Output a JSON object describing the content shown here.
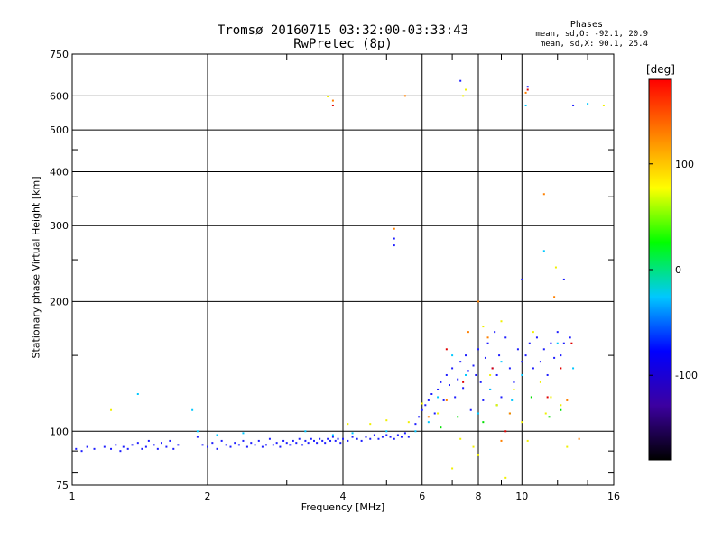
{
  "chart_data": {
    "type": "scatter",
    "title": "Tromsø 20160715 03:32:00-03:33:43",
    "subtitle": "RwPretec (8p)",
    "xlabel": "Frequency [MHz]",
    "ylabel": "Stationary phase Virtual Height [km]",
    "xscale": "log",
    "yscale": "log",
    "xlim": [
      1,
      16
    ],
    "ylim": [
      75,
      750
    ],
    "xticks": [
      1,
      2,
      4,
      6,
      8,
      10,
      16
    ],
    "xtick_labels": [
      "1",
      "2",
      "4",
      "6",
      "8",
      "10",
      "16"
    ],
    "yticks": [
      75,
      100,
      200,
      300,
      400,
      500,
      600,
      750
    ],
    "ytick_labels": [
      "75",
      "100",
      "200",
      "300",
      "400",
      "500",
      "600",
      "750"
    ],
    "grid": true,
    "phases": {
      "header": "Phases",
      "o_line": "mean, sd,O: -92.1, 20.9",
      "x_line": "mean, sd,X:  90.1, 25.4"
    },
    "colorbar": {
      "label": "[deg]",
      "range": [
        -180,
        180
      ],
      "ticks": [
        100,
        0,
        -100
      ],
      "tick_labels": [
        "100",
        "0",
        "-100"
      ],
      "colors": [
        "#000000",
        "#3c00a0",
        "#0000ff",
        "#00c8ff",
        "#00ff00",
        "#ffff00",
        "#ff8000",
        "#ff0000"
      ]
    },
    "series": [
      {
        "values": [
          [
            1.02,
            91
          ],
          [
            1.05,
            90
          ],
          [
            1.08,
            92
          ],
          [
            1.12,
            91
          ],
          [
            1.18,
            92
          ],
          [
            1.22,
            91
          ],
          [
            1.25,
            93
          ],
          [
            1.28,
            90
          ],
          [
            1.3,
            92
          ],
          [
            1.33,
            91
          ],
          [
            1.36,
            93
          ],
          [
            1.4,
            94
          ],
          [
            1.43,
            91
          ],
          [
            1.46,
            92
          ],
          [
            1.48,
            95
          ],
          [
            1.52,
            93
          ],
          [
            1.55,
            91
          ],
          [
            1.58,
            94
          ],
          [
            1.62,
            92
          ],
          [
            1.65,
            95
          ],
          [
            1.68,
            91
          ],
          [
            1.72,
            93
          ],
          [
            1.9,
            97
          ],
          [
            1.95,
            93
          ],
          [
            2.0,
            92
          ],
          [
            2.05,
            94
          ],
          [
            2.1,
            91
          ],
          [
            2.15,
            95
          ],
          [
            2.2,
            93
          ],
          [
            2.25,
            92
          ],
          [
            2.3,
            94
          ],
          [
            2.35,
            93
          ],
          [
            2.4,
            95
          ],
          [
            2.45,
            92
          ],
          [
            2.5,
            94
          ],
          [
            2.55,
            93
          ],
          [
            2.6,
            95
          ],
          [
            2.65,
            92
          ],
          [
            2.7,
            93
          ],
          [
            2.75,
            96
          ],
          [
            2.8,
            93
          ],
          [
            2.85,
            94
          ],
          [
            2.9,
            92
          ],
          [
            2.95,
            95
          ],
          [
            3.0,
            94
          ],
          [
            3.05,
            93
          ],
          [
            3.1,
            95
          ],
          [
            3.15,
            94
          ],
          [
            3.2,
            96
          ],
          [
            3.25,
            93
          ],
          [
            3.3,
            95
          ],
          [
            3.35,
            94
          ],
          [
            3.4,
            96
          ],
          [
            3.45,
            95
          ],
          [
            3.5,
            94
          ],
          [
            3.55,
            96
          ],
          [
            3.6,
            95
          ],
          [
            3.65,
            94
          ],
          [
            3.7,
            96
          ],
          [
            3.75,
            95
          ],
          [
            3.8,
            97
          ],
          [
            3.85,
            95
          ],
          [
            3.9,
            96
          ],
          [
            3.95,
            94
          ],
          [
            4.0,
            96
          ],
          [
            4.1,
            95
          ],
          [
            4.2,
            97
          ],
          [
            4.3,
            96
          ],
          [
            4.4,
            95
          ],
          [
            4.5,
            97
          ],
          [
            4.6,
            96
          ],
          [
            4.7,
            98
          ],
          [
            4.8,
            96
          ],
          [
            4.9,
            97
          ],
          [
            5.0,
            98
          ],
          [
            5.1,
            97
          ],
          [
            5.2,
            96
          ],
          [
            5.3,
            98
          ],
          [
            5.4,
            97
          ],
          [
            5.5,
            99
          ],
          [
            5.6,
            97
          ],
          [
            5.2,
            270
          ],
          [
            5.2,
            280
          ],
          [
            5.8,
            104
          ],
          [
            5.9,
            108
          ],
          [
            6.0,
            112
          ],
          [
            6.1,
            115
          ],
          [
            6.2,
            118
          ],
          [
            6.3,
            122
          ],
          [
            6.4,
            110
          ],
          [
            6.5,
            125
          ],
          [
            6.6,
            130
          ],
          [
            6.7,
            118
          ],
          [
            6.8,
            135
          ],
          [
            6.9,
            128
          ],
          [
            7.0,
            140
          ],
          [
            7.1,
            120
          ],
          [
            7.2,
            132
          ],
          [
            7.3,
            145
          ],
          [
            7.4,
            126
          ],
          [
            7.5,
            150
          ],
          [
            7.6,
            138
          ],
          [
            7.7,
            112
          ],
          [
            7.8,
            142
          ],
          [
            7.9,
            135
          ],
          [
            8.0,
            155
          ],
          [
            8.1,
            130
          ],
          [
            8.2,
            118
          ],
          [
            8.3,
            148
          ],
          [
            8.4,
            160
          ],
          [
            8.5,
            125
          ],
          [
            8.6,
            140
          ],
          [
            8.7,
            170
          ],
          [
            8.8,
            135
          ],
          [
            8.9,
            150
          ],
          [
            9.0,
            120
          ],
          [
            9.2,
            165
          ],
          [
            9.4,
            140
          ],
          [
            9.6,
            130
          ],
          [
            9.8,
            155
          ],
          [
            10.0,
            145
          ],
          [
            10.2,
            150
          ],
          [
            10.4,
            160
          ],
          [
            10.6,
            140
          ],
          [
            10.8,
            165
          ],
          [
            11.0,
            145
          ],
          [
            11.2,
            155
          ],
          [
            11.4,
            135
          ],
          [
            11.6,
            160
          ],
          [
            11.8,
            148
          ],
          [
            12.0,
            170
          ],
          [
            12.2,
            150
          ],
          [
            12.4,
            160
          ],
          [
            12.8,
            165
          ],
          [
            10.3,
            630
          ],
          [
            7.3,
            650
          ],
          [
            13.0,
            570
          ],
          [
            12.4,
            225
          ],
          [
            10.0,
            225
          ]
        ],
        "color": "#1e1eff"
      },
      {
        "values": [
          [
            1.4,
            122
          ],
          [
            1.85,
            112
          ],
          [
            1.9,
            100
          ],
          [
            2.1,
            98
          ],
          [
            2.4,
            99
          ],
          [
            3.3,
            100
          ],
          [
            3.8,
            98
          ],
          [
            4.2,
            99
          ],
          [
            5.0,
            100
          ],
          [
            5.8,
            100
          ],
          [
            6.2,
            105
          ],
          [
            6.5,
            120
          ],
          [
            7.0,
            150
          ],
          [
            7.5,
            135
          ],
          [
            8.0,
            110
          ],
          [
            8.5,
            125
          ],
          [
            9.0,
            145
          ],
          [
            9.5,
            118
          ],
          [
            10.0,
            135
          ],
          [
            10.2,
            570
          ],
          [
            11.2,
            262
          ],
          [
            12.0,
            160
          ],
          [
            13.0,
            140
          ],
          [
            14.0,
            575
          ]
        ],
        "color": "#00c8ff"
      },
      {
        "values": [
          [
            6.6,
            102
          ],
          [
            7.2,
            108
          ],
          [
            8.2,
            105
          ],
          [
            8.8,
            115
          ],
          [
            9.4,
            110
          ],
          [
            10.5,
            120
          ],
          [
            11.5,
            108
          ],
          [
            12.2,
            112
          ]
        ],
        "color": "#00e000"
      },
      {
        "values": [
          [
            1.22,
            112
          ],
          [
            3.7,
            598
          ],
          [
            4.1,
            104
          ],
          [
            4.6,
            104
          ],
          [
            5.0,
            106
          ],
          [
            5.6,
            105
          ],
          [
            6.0,
            116
          ],
          [
            6.5,
            110
          ],
          [
            7.0,
            82
          ],
          [
            7.3,
            96
          ],
          [
            7.4,
            600
          ],
          [
            7.5,
            620
          ],
          [
            7.8,
            92
          ],
          [
            8.0,
            88
          ],
          [
            8.2,
            175
          ],
          [
            8.5,
            135
          ],
          [
            8.8,
            115
          ],
          [
            9.0,
            180
          ],
          [
            9.2,
            78
          ],
          [
            9.6,
            125
          ],
          [
            10.0,
            105
          ],
          [
            10.3,
            95
          ],
          [
            10.6,
            170
          ],
          [
            11.0,
            130
          ],
          [
            11.3,
            110
          ],
          [
            11.6,
            120
          ],
          [
            11.9,
            240
          ],
          [
            12.2,
            115
          ],
          [
            12.6,
            92
          ],
          [
            15.2,
            570
          ]
        ],
        "color": "#f0f000"
      },
      {
        "values": [
          [
            3.8,
            585
          ],
          [
            5.2,
            295
          ],
          [
            5.5,
            600
          ],
          [
            6.2,
            108
          ],
          [
            6.8,
            118
          ],
          [
            7.6,
            170
          ],
          [
            8.0,
            200
          ],
          [
            8.4,
            165
          ],
          [
            9.0,
            95
          ],
          [
            9.4,
            110
          ],
          [
            10.2,
            610
          ],
          [
            11.2,
            355
          ],
          [
            11.8,
            205
          ],
          [
            12.6,
            118
          ],
          [
            13.4,
            96
          ]
        ],
        "color": "#ff8000"
      },
      {
        "values": [
          [
            3.8,
            570
          ],
          [
            6.8,
            155
          ],
          [
            7.4,
            130
          ],
          [
            8.6,
            140
          ],
          [
            9.2,
            100
          ],
          [
            10.3,
            620
          ],
          [
            11.4,
            120
          ],
          [
            12.2,
            140
          ],
          [
            12.9,
            160
          ]
        ],
        "color": "#e00000"
      }
    ]
  }
}
